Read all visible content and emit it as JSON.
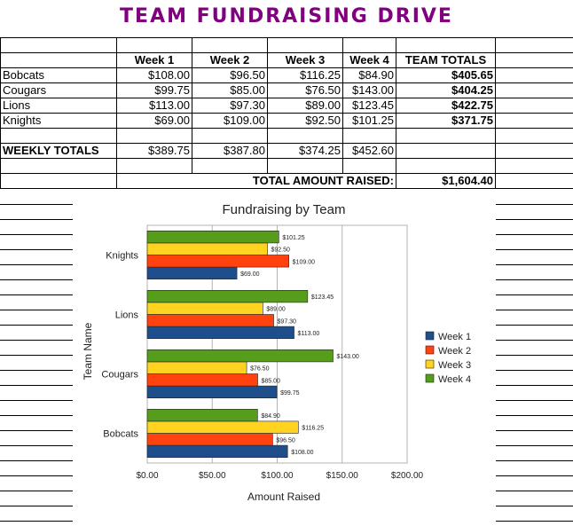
{
  "sheet": {
    "title": "TEAM FUNDRAISING DRIVE",
    "headers": [
      "",
      "Week 1",
      "Week 2",
      "Week 3",
      "Week 4",
      "TEAM TOTALS"
    ],
    "rows": [
      {
        "team": "Bobcats",
        "w1": "$108.00",
        "w2": "$96.50",
        "w3": "$116.25",
        "w4": "$84.90",
        "total": "$405.65"
      },
      {
        "team": "Cougars",
        "w1": "$99.75",
        "w2": "$85.00",
        "w3": "$76.50",
        "w4": "$143.00",
        "total": "$404.25"
      },
      {
        "team": "Lions",
        "w1": "$113.00",
        "w2": "$97.30",
        "w3": "$89.00",
        "w4": "$123.45",
        "total": "$422.75"
      },
      {
        "team": "Knights",
        "w1": "$69.00",
        "w2": "$109.00",
        "w3": "$92.50",
        "w4": "$101.25",
        "total": "$371.75"
      }
    ],
    "weekly_totals": {
      "label": "WEEKLY TOTALS",
      "w1": "$389.75",
      "w2": "$387.80",
      "w3": "$374.25",
      "w4": "$452.60"
    },
    "grand_total": {
      "label": "TOTAL AMOUNT RAISED:",
      "value": "$1,604.40"
    }
  },
  "chart_data": {
    "type": "bar",
    "orientation": "horizontal",
    "title": "Fundraising by Team",
    "xlabel": "Amount Raised",
    "ylabel": "Team Name",
    "categories": [
      "Bobcats",
      "Cougars",
      "Lions",
      "Knights"
    ],
    "xlim": [
      0,
      200
    ],
    "ticks": [
      "$0.00",
      "$50.00",
      "$100.00",
      "$150.00",
      "$200.00"
    ],
    "tick_values": [
      0,
      50,
      100,
      150,
      200
    ],
    "grid": true,
    "legend_position": "right",
    "series": [
      {
        "name": "Week 1",
        "color": "#1f4e8c",
        "values": [
          108.0,
          99.75,
          113.0,
          69.0
        ],
        "labels": [
          "$108.00",
          "$99.75",
          "$113.00",
          "$69.00"
        ]
      },
      {
        "name": "Week 2",
        "color": "#ff420e",
        "values": [
          96.5,
          85.0,
          97.3,
          109.0
        ],
        "labels": [
          "$96.50",
          "$85.00",
          "$97.30",
          "$109.00"
        ]
      },
      {
        "name": "Week 3",
        "color": "#ffd320",
        "values": [
          116.25,
          76.5,
          89.0,
          92.5
        ],
        "labels": [
          "$116.25",
          "$76.50",
          "$89.00",
          "$92.50"
        ]
      },
      {
        "name": "Week 4",
        "color": "#579d1c",
        "values": [
          84.9,
          143.0,
          123.45,
          101.25
        ],
        "labels": [
          "$84.90",
          "$143.00",
          "$123.45",
          "$101.25"
        ]
      }
    ]
  }
}
